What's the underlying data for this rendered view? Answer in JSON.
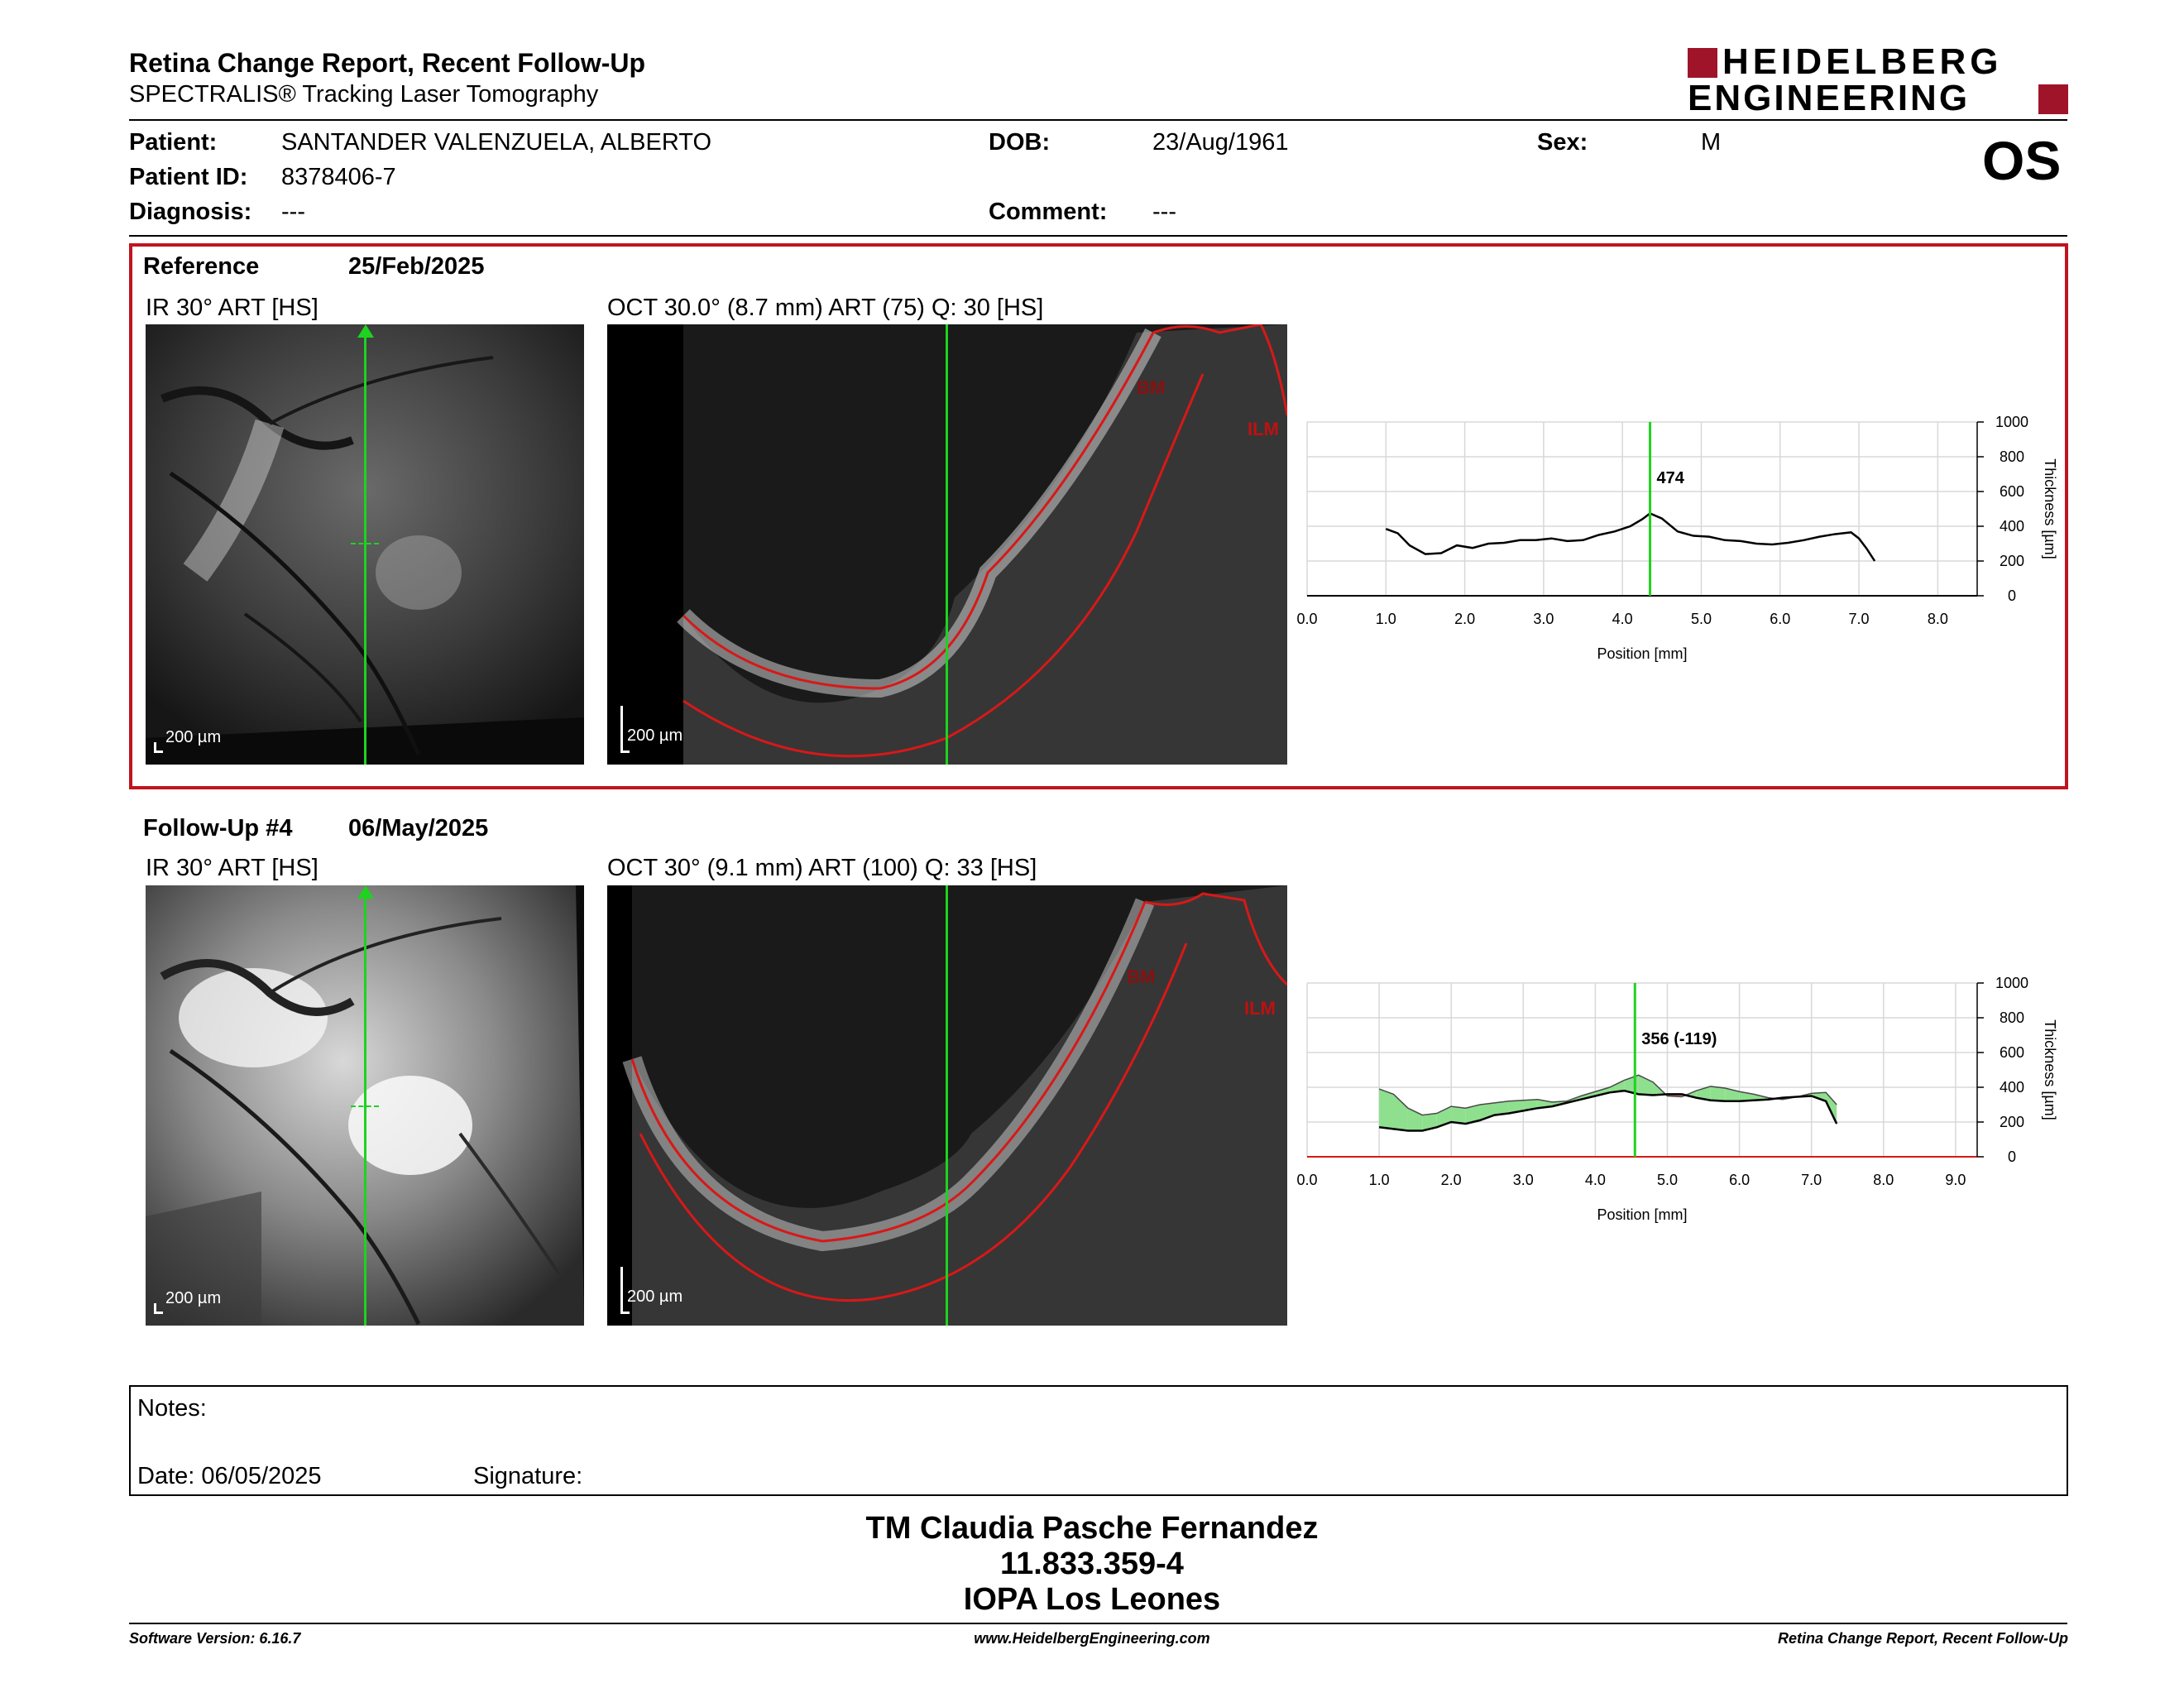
{
  "header": {
    "title": "Retina Change Report, Recent Follow-Up",
    "subtitle": "SPECTRALIS® Tracking Laser Tomography",
    "brand_line1": "HEIDELBERG",
    "brand_line2": "ENGINEERING",
    "brand_color": "#a0142a"
  },
  "patient": {
    "patient_label": "Patient:",
    "patient_value": "SANTANDER VALENZUELA, ALBERTO",
    "id_label": "Patient ID:",
    "id_value": "8378406-7",
    "diagnosis_label": "Diagnosis:",
    "diagnosis_value": "---",
    "dob_label": "DOB:",
    "dob_value": "23/Aug/1961",
    "comment_label": "Comment:",
    "comment_value": "---",
    "sex_label": "Sex:",
    "sex_value": "M",
    "eye": "OS"
  },
  "reference": {
    "label": "Reference",
    "date": "25/Feb/2025",
    "ir_title": "IR 30° ART [HS]",
    "oct_title": "OCT 30.0° (8.7 mm) ART (75) Q: 30 [HS]",
    "scale_label": "200 µm",
    "bm_label": "BM",
    "ilm_label": "ILM"
  },
  "followup": {
    "label": "Follow-Up #4",
    "date": "06/May/2025",
    "ir_title": "IR 30° ART [HS]",
    "oct_title": "OCT 30° (9.1 mm) ART (100) Q: 33 [HS]",
    "scale_label": "200 µm",
    "bm_label": "BM",
    "ilm_label": "ILM"
  },
  "chart_data": [
    {
      "type": "line",
      "xlabel": "Position [mm]",
      "ylabel": "Thickness [µm]",
      "xlim": [
        0,
        8.5
      ],
      "ylim": [
        0,
        1000
      ],
      "xticks": [
        "0.0",
        "1.0",
        "2.0",
        "3.0",
        "4.0",
        "5.0",
        "6.0",
        "7.0",
        "8.0"
      ],
      "yticks": [
        "0",
        "200",
        "400",
        "600",
        "800",
        "1000"
      ],
      "cursor_x": 4.35,
      "cursor_label": "474",
      "series": [
        {
          "x": [
            1.0,
            1.15,
            1.3,
            1.5,
            1.7,
            1.9,
            2.1,
            2.3,
            2.5,
            2.7,
            2.9,
            3.1,
            3.3,
            3.5,
            3.7,
            3.9,
            4.1,
            4.25,
            4.35,
            4.5,
            4.7,
            4.9,
            5.1,
            5.3,
            5.5,
            5.7,
            5.9,
            6.1,
            6.3,
            6.5,
            6.7,
            6.9,
            7.0,
            7.1,
            7.2
          ],
          "y": [
            385,
            360,
            290,
            240,
            245,
            290,
            275,
            300,
            305,
            320,
            320,
            330,
            315,
            320,
            350,
            370,
            400,
            440,
            474,
            445,
            370,
            345,
            340,
            320,
            315,
            300,
            295,
            305,
            320,
            340,
            355,
            365,
            330,
            270,
            200
          ]
        }
      ],
      "grid": true
    },
    {
      "type": "area",
      "xlabel": "Position [mm]",
      "ylabel": "Thickness [µm]",
      "xlim": [
        0,
        9.3
      ],
      "ylim": [
        0,
        1000
      ],
      "xticks": [
        "0.0",
        "1.0",
        "2.0",
        "3.0",
        "4.0",
        "5.0",
        "6.0",
        "7.0",
        "8.0",
        "9.0"
      ],
      "yticks": [
        "0",
        "200",
        "400",
        "600",
        "800",
        "1000"
      ],
      "cursor_x": 4.55,
      "cursor_label": "356 (-119)",
      "increase_color": "#8ee08e",
      "decrease_color": "#e07a7a",
      "series": [
        {
          "x": [
            1.0,
            1.2,
            1.4,
            1.6,
            1.8,
            2.0,
            2.2,
            2.4,
            2.6,
            2.8,
            3.0,
            3.2,
            3.4,
            3.6,
            3.8,
            4.0,
            4.2,
            4.4,
            4.6,
            4.8,
            5.0,
            5.2,
            5.4,
            5.6,
            5.8,
            6.0,
            6.2,
            6.4,
            6.6,
            6.8,
            7.0,
            7.2,
            7.35
          ],
          "y": [
            170,
            160,
            150,
            150,
            170,
            200,
            190,
            210,
            240,
            250,
            265,
            280,
            290,
            310,
            330,
            350,
            370,
            380,
            360,
            355,
            360,
            360,
            340,
            325,
            320,
            320,
            325,
            330,
            340,
            345,
            350,
            320,
            190
          ]
        },
        {
          "x": [
            1.0,
            1.2,
            1.4,
            1.6,
            1.8,
            2.0,
            2.2,
            2.4,
            2.6,
            2.8,
            3.0,
            3.2,
            3.4,
            3.6,
            3.8,
            4.0,
            4.2,
            4.4,
            4.6,
            4.8,
            5.0,
            5.2,
            5.4,
            5.6,
            5.8,
            6.0,
            6.2,
            6.4,
            6.6,
            6.8,
            7.0,
            7.2,
            7.35
          ],
          "y": [
            390,
            360,
            280,
            240,
            250,
            290,
            280,
            300,
            310,
            320,
            325,
            330,
            315,
            320,
            350,
            375,
            400,
            440,
            470,
            430,
            350,
            345,
            380,
            405,
            395,
            375,
            360,
            340,
            330,
            345,
            365,
            370,
            300
          ]
        }
      ],
      "grid": true
    }
  ],
  "notes": {
    "notes_label": "Notes:",
    "date_label": "Date: 06/05/2025",
    "signature_label": "Signature:"
  },
  "signoff": {
    "line1": "TM Claudia Pasche Fernandez",
    "line2": "11.833.359-4",
    "line3": "IOPA Los Leones"
  },
  "footer": {
    "left": "Software Version: 6.16.7",
    "center": "www.HeidelbergEngineering.com",
    "right": "Retina Change Report, Recent Follow-Up"
  },
  "colors": {
    "frame_red": "#c0141e",
    "cursor_green": "#1fd21f",
    "segmentation_red": "#d81818"
  }
}
